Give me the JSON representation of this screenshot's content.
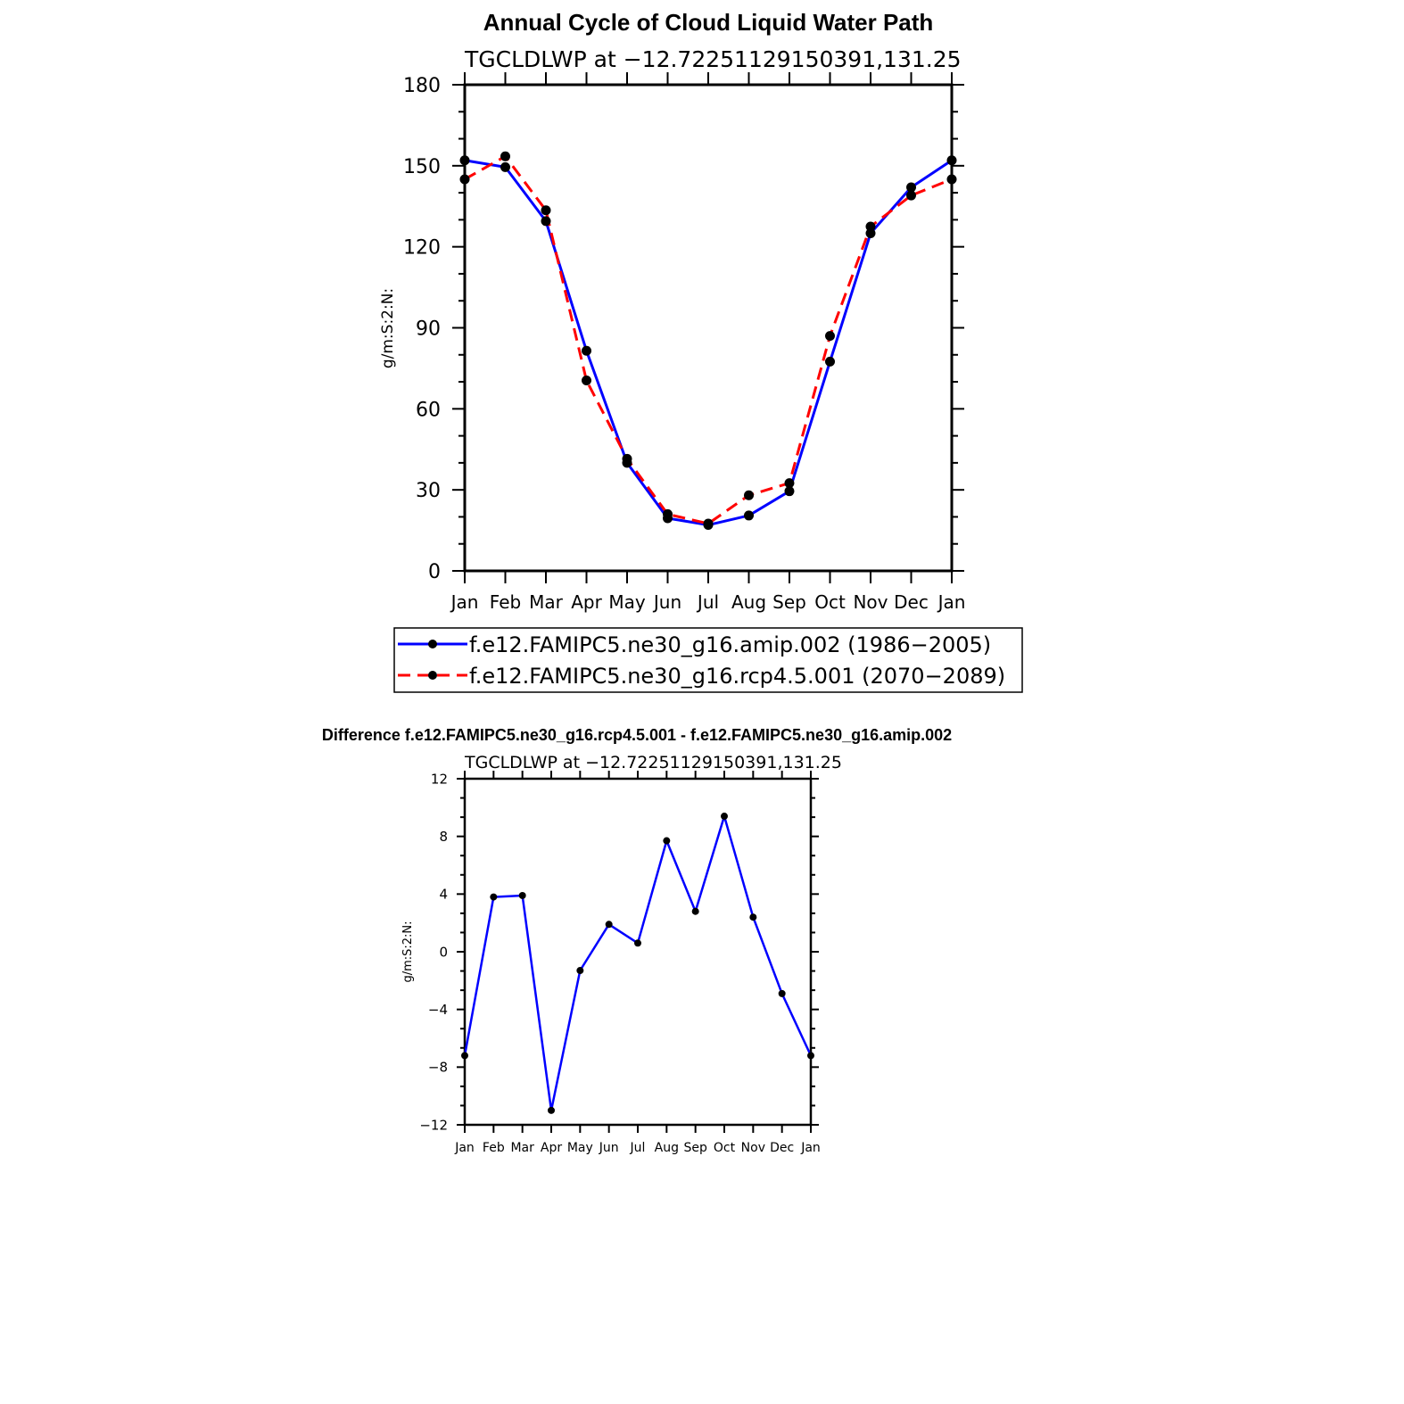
{
  "chart_data": [
    {
      "type": "line",
      "title": "Annual Cycle of Cloud Liquid Water Path",
      "subtitle": "TGCLDLWP at −12.72251129150391,131.25",
      "ylabel": "g/m:S:2:N:",
      "xlabel": "",
      "categories": [
        "Jan",
        "Feb",
        "Mar",
        "Apr",
        "May",
        "Jun",
        "Jul",
        "Aug",
        "Sep",
        "Oct",
        "Nov",
        "Dec",
        "Jan"
      ],
      "ylim": [
        0,
        180
      ],
      "yticks": [
        0,
        30,
        60,
        90,
        120,
        150,
        180
      ],
      "ytick_labels": [
        "0",
        "30",
        "60",
        "90",
        "120",
        "150",
        "180"
      ],
      "grid": false,
      "legend_position": "bottom",
      "series": [
        {
          "name": "f.e12.FAMIPC5.ne30_g16.amip.002 (1986−2005)",
          "color": "#0000ff",
          "dash": "solid",
          "values": [
            152,
            149.5,
            129.5,
            81.5,
            40,
            19.5,
            17,
            20.5,
            29.5,
            77.5,
            125,
            142,
            152
          ]
        },
        {
          "name": "f.e12.FAMIPC5.ne30_g16.rcp4.5.001 (2070−2089)",
          "color": "#ff0000",
          "dash": "dashed",
          "values": [
            145,
            153.5,
            133.5,
            70.5,
            41.5,
            21,
            17.5,
            28,
            32.5,
            87,
            127.5,
            139,
            145
          ]
        }
      ]
    },
    {
      "type": "line",
      "title": "Difference f.e12.FAMIPC5.ne30_g16.rcp4.5.001 - f.e12.FAMIPC5.ne30_g16.amip.002",
      "subtitle": "TGCLDLWP at −12.72251129150391,131.25",
      "ylabel": "g/m:S:2:N:",
      "xlabel": "",
      "categories": [
        "Jan",
        "Feb",
        "Mar",
        "Apr",
        "May",
        "Jun",
        "Jul",
        "Aug",
        "Sep",
        "Oct",
        "Nov",
        "Dec",
        "Jan"
      ],
      "ylim": [
        -12,
        12
      ],
      "yticks": [
        -12,
        -8,
        -4,
        0,
        4,
        8,
        12
      ],
      "ytick_labels": [
        "−12",
        "−8",
        "−4",
        "0",
        "4",
        "8",
        "12"
      ],
      "grid": false,
      "series": [
        {
          "color": "#0000ff",
          "dash": "solid",
          "values": [
            -7.2,
            3.8,
            3.9,
            -11,
            -1.3,
            1.9,
            0.6,
            7.7,
            2.8,
            9.4,
            2.4,
            -2.9,
            -7.2
          ]
        }
      ]
    }
  ]
}
